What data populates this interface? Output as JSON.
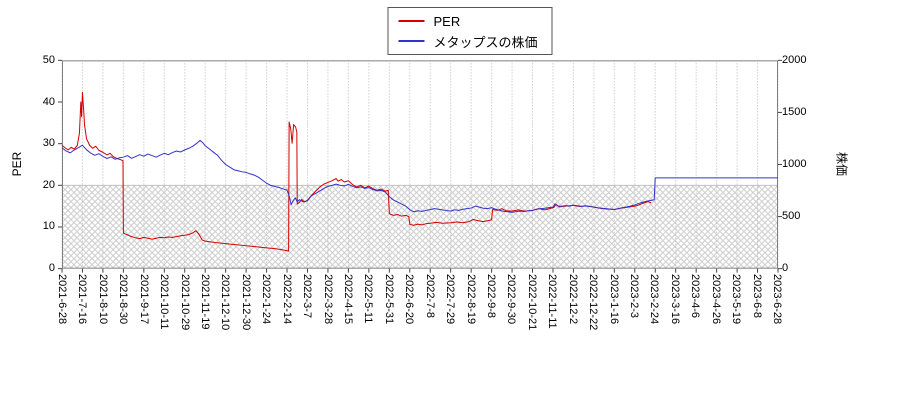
{
  "colors": {
    "per_line": "#d40000",
    "price_line": "#3333cc",
    "grid": "#b8b8b8",
    "hatch": "#cccccc",
    "hatch_edge": "#c0c0c0",
    "plot_border": "#808080",
    "tick_mark": "#444444"
  },
  "chart_data": {
    "type": "line",
    "title": "",
    "x_unit_note": "x values are x-axis tick-index units: 0 = 2021-6-28 tick, 35 = 2023-6-28 tick (ticks evenly spaced, ~15 trading days apart)",
    "x_domain": [
      0,
      35
    ],
    "x_axis": {
      "tick_labels": [
        "2021-6-28",
        "2021-7-16",
        "2021-8-10",
        "2021-8-30",
        "2021-9-17",
        "2021-10-11",
        "2021-10-29",
        "2021-11-19",
        "2021-12-10",
        "2021-12-30",
        "2022-1-24",
        "2022-2-14",
        "2022-3-7",
        "2022-3-28",
        "2022-4-15",
        "2022-5-11",
        "2022-5-31",
        "2022-6-20",
        "2022-7-8",
        "2022-7-29",
        "2022-8-19",
        "2022-9-8",
        "2022-9-30",
        "2022-10-21",
        "2022-11-11",
        "2022-12-2",
        "2022-12-22",
        "2023-1-16",
        "2023-2-3",
        "2023-2-24",
        "2023-3-16",
        "2023-4-6",
        "2023-4-26",
        "2023-5-19",
        "2023-6-8",
        "2023-6-28"
      ]
    },
    "y_left": {
      "label": "PER",
      "min": 0,
      "max": 50,
      "ticks": [
        0,
        10,
        20,
        30,
        40,
        50
      ]
    },
    "y_right": {
      "label": "株価",
      "min": 0,
      "max": 2000,
      "ticks": [
        0,
        500,
        1000,
        1500,
        2000
      ]
    },
    "shaded_band": {
      "axis": "left",
      "from": 0,
      "to": 20,
      "style": "crosshatch"
    },
    "legend_position": "top-center",
    "grid": "vertical-dotted",
    "series": [
      {
        "name": "PER",
        "color": "#d40000",
        "axis": "left",
        "points": [
          [
            0,
            29.6
          ],
          [
            0.15,
            29.0
          ],
          [
            0.3,
            28.5
          ],
          [
            0.45,
            29.1
          ],
          [
            0.6,
            28.7
          ],
          [
            0.75,
            29.6
          ],
          [
            0.85,
            32.5
          ],
          [
            0.92,
            40.0
          ],
          [
            0.96,
            36.5
          ],
          [
            1.0,
            42.3
          ],
          [
            1.05,
            38.5
          ],
          [
            1.1,
            34.5
          ],
          [
            1.2,
            31.2
          ],
          [
            1.35,
            29.6
          ],
          [
            1.5,
            28.9
          ],
          [
            1.65,
            29.4
          ],
          [
            1.8,
            28.4
          ],
          [
            2.0,
            27.9
          ],
          [
            2.2,
            27.3
          ],
          [
            2.35,
            27.7
          ],
          [
            2.5,
            26.9
          ],
          [
            2.7,
            26.4
          ],
          [
            2.9,
            26.1
          ],
          [
            2.98,
            25.9
          ],
          [
            3.0,
            8.5
          ],
          [
            3.2,
            8.1
          ],
          [
            3.4,
            7.7
          ],
          [
            3.6,
            7.4
          ],
          [
            3.8,
            7.2
          ],
          [
            4.0,
            7.5
          ],
          [
            4.2,
            7.3
          ],
          [
            4.4,
            7.1
          ],
          [
            4.6,
            7.3
          ],
          [
            4.8,
            7.5
          ],
          [
            5.0,
            7.4
          ],
          [
            5.2,
            7.6
          ],
          [
            5.4,
            7.5
          ],
          [
            5.6,
            7.7
          ],
          [
            5.8,
            7.9
          ],
          [
            6.0,
            8.0
          ],
          [
            6.2,
            8.2
          ],
          [
            6.4,
            8.6
          ],
          [
            6.55,
            9.1
          ],
          [
            6.7,
            8.2
          ],
          [
            6.85,
            6.9
          ],
          [
            7.0,
            6.6
          ],
          [
            7.3,
            6.4
          ],
          [
            7.6,
            6.2
          ],
          [
            8.0,
            6.0
          ],
          [
            8.4,
            5.8
          ],
          [
            8.8,
            5.6
          ],
          [
            9.2,
            5.4
          ],
          [
            9.6,
            5.2
          ],
          [
            10.0,
            5.0
          ],
          [
            10.4,
            4.8
          ],
          [
            10.8,
            4.5
          ],
          [
            11.0,
            4.3
          ],
          [
            11.08,
            4.2
          ],
          [
            11.1,
            35.2
          ],
          [
            11.18,
            33.6
          ],
          [
            11.25,
            30.1
          ],
          [
            11.32,
            34.6
          ],
          [
            11.42,
            34.0
          ],
          [
            11.48,
            32.8
          ],
          [
            11.5,
            15.5
          ],
          [
            11.6,
            15.9
          ],
          [
            11.72,
            16.6
          ],
          [
            11.85,
            16.0
          ],
          [
            12.0,
            16.4
          ],
          [
            12.2,
            17.6
          ],
          [
            12.4,
            18.6
          ],
          [
            12.6,
            19.6
          ],
          [
            12.8,
            20.3
          ],
          [
            13.0,
            20.7
          ],
          [
            13.2,
            21.1
          ],
          [
            13.4,
            21.6
          ],
          [
            13.5,
            21.0
          ],
          [
            13.65,
            21.4
          ],
          [
            13.8,
            20.8
          ],
          [
            14.0,
            21.1
          ],
          [
            14.2,
            20.2
          ],
          [
            14.4,
            19.6
          ],
          [
            14.6,
            20.0
          ],
          [
            14.8,
            19.4
          ],
          [
            15.0,
            19.8
          ],
          [
            15.2,
            19.2
          ],
          [
            15.4,
            18.8
          ],
          [
            15.6,
            19.1
          ],
          [
            15.8,
            18.6
          ],
          [
            15.95,
            18.8
          ],
          [
            16.0,
            13.2
          ],
          [
            16.2,
            12.8
          ],
          [
            16.4,
            13.0
          ],
          [
            16.6,
            12.6
          ],
          [
            16.8,
            12.8
          ],
          [
            16.95,
            12.5
          ],
          [
            17.0,
            10.6
          ],
          [
            17.2,
            10.4
          ],
          [
            17.4,
            10.7
          ],
          [
            17.6,
            10.5
          ],
          [
            17.8,
            10.8
          ],
          [
            18.0,
            10.9
          ],
          [
            18.3,
            11.1
          ],
          [
            18.6,
            10.9
          ],
          [
            19.0,
            11.0
          ],
          [
            19.3,
            11.2
          ],
          [
            19.6,
            11.0
          ],
          [
            19.9,
            11.3
          ],
          [
            20.1,
            11.8
          ],
          [
            20.35,
            11.5
          ],
          [
            20.6,
            11.3
          ],
          [
            20.8,
            11.5
          ],
          [
            21.0,
            11.7
          ],
          [
            21.05,
            14.2
          ],
          [
            21.3,
            14.0
          ],
          [
            21.5,
            14.4
          ],
          [
            21.7,
            13.9
          ],
          [
            22.0,
            13.8
          ],
          [
            22.3,
            14.1
          ],
          [
            22.6,
            13.8
          ],
          [
            23.0,
            14.0
          ],
          [
            23.3,
            14.4
          ],
          [
            23.6,
            14.1
          ],
          [
            23.9,
            14.5
          ],
          [
            24.05,
            14.7
          ],
          [
            24.15,
            15.5
          ],
          [
            24.3,
            14.8
          ],
          [
            24.6,
            15.0
          ],
          [
            25.0,
            15.2
          ],
          [
            25.3,
            14.9
          ],
          [
            25.6,
            15.1
          ],
          [
            26.0,
            14.8
          ],
          [
            26.3,
            14.5
          ],
          [
            26.6,
            14.3
          ],
          [
            27.0,
            14.2
          ],
          [
            27.3,
            14.5
          ],
          [
            27.6,
            14.7
          ],
          [
            28.0,
            15.0
          ],
          [
            28.2,
            15.3
          ],
          [
            28.45,
            15.8
          ],
          [
            28.65,
            16.1
          ],
          [
            28.8,
            15.8
          ]
        ]
      },
      {
        "name": "メタップスの株価",
        "color": "#3333cc",
        "axis": "right",
        "points": [
          [
            0,
            1160
          ],
          [
            0.2,
            1130
          ],
          [
            0.4,
            1112
          ],
          [
            0.6,
            1140
          ],
          [
            0.8,
            1162
          ],
          [
            1.0,
            1186
          ],
          [
            1.2,
            1142
          ],
          [
            1.4,
            1110
          ],
          [
            1.6,
            1088
          ],
          [
            1.8,
            1104
          ],
          [
            2.0,
            1078
          ],
          [
            2.2,
            1058
          ],
          [
            2.4,
            1074
          ],
          [
            2.6,
            1050
          ],
          [
            2.8,
            1064
          ],
          [
            3.0,
            1070
          ],
          [
            3.2,
            1086
          ],
          [
            3.4,
            1060
          ],
          [
            3.6,
            1076
          ],
          [
            3.8,
            1094
          ],
          [
            4.0,
            1080
          ],
          [
            4.2,
            1100
          ],
          [
            4.4,
            1086
          ],
          [
            4.6,
            1070
          ],
          [
            4.8,
            1090
          ],
          [
            5.0,
            1108
          ],
          [
            5.2,
            1094
          ],
          [
            5.4,
            1114
          ],
          [
            5.6,
            1130
          ],
          [
            5.8,
            1120
          ],
          [
            6.0,
            1140
          ],
          [
            6.2,
            1156
          ],
          [
            6.4,
            1176
          ],
          [
            6.6,
            1206
          ],
          [
            6.75,
            1232
          ],
          [
            6.9,
            1205
          ],
          [
            7.0,
            1180
          ],
          [
            7.2,
            1150
          ],
          [
            7.4,
            1118
          ],
          [
            7.6,
            1088
          ],
          [
            7.8,
            1040
          ],
          [
            8.0,
            1000
          ],
          [
            8.2,
            975
          ],
          [
            8.4,
            950
          ],
          [
            8.6,
            940
          ],
          [
            8.8,
            930
          ],
          [
            9.0,
            924
          ],
          [
            9.2,
            910
          ],
          [
            9.4,
            898
          ],
          [
            9.6,
            878
          ],
          [
            9.8,
            850
          ],
          [
            10.0,
            820
          ],
          [
            10.2,
            800
          ],
          [
            10.4,
            790
          ],
          [
            10.6,
            780
          ],
          [
            10.8,
            766
          ],
          [
            11.0,
            754
          ],
          [
            11.1,
            700
          ],
          [
            11.2,
            614
          ],
          [
            11.3,
            652
          ],
          [
            11.4,
            680
          ],
          [
            11.5,
            642
          ],
          [
            11.6,
            662
          ],
          [
            11.8,
            640
          ],
          [
            12.0,
            652
          ],
          [
            12.2,
            700
          ],
          [
            12.4,
            722
          ],
          [
            12.6,
            746
          ],
          [
            12.8,
            770
          ],
          [
            13.0,
            790
          ],
          [
            13.2,
            800
          ],
          [
            13.4,
            812
          ],
          [
            13.6,
            800
          ],
          [
            13.8,
            794
          ],
          [
            14.0,
            810
          ],
          [
            14.2,
            790
          ],
          [
            14.4,
            776
          ],
          [
            14.6,
            786
          ],
          [
            14.8,
            770
          ],
          [
            15.0,
            778
          ],
          [
            15.2,
            760
          ],
          [
            15.4,
            746
          ],
          [
            15.6,
            752
          ],
          [
            15.8,
            736
          ],
          [
            16.0,
            690
          ],
          [
            16.2,
            660
          ],
          [
            16.4,
            640
          ],
          [
            16.6,
            620
          ],
          [
            16.8,
            600
          ],
          [
            17.0,
            566
          ],
          [
            17.2,
            546
          ],
          [
            17.4,
            556
          ],
          [
            17.6,
            550
          ],
          [
            17.8,
            560
          ],
          [
            18.0,
            566
          ],
          [
            18.2,
            576
          ],
          [
            18.4,
            570
          ],
          [
            18.6,
            564
          ],
          [
            18.8,
            558
          ],
          [
            19.0,
            554
          ],
          [
            19.2,
            564
          ],
          [
            19.4,
            560
          ],
          [
            19.6,
            570
          ],
          [
            19.8,
            576
          ],
          [
            20.0,
            582
          ],
          [
            20.2,
            600
          ],
          [
            20.4,
            590
          ],
          [
            20.6,
            580
          ],
          [
            20.8,
            576
          ],
          [
            21.0,
            586
          ],
          [
            21.2,
            570
          ],
          [
            21.4,
            560
          ],
          [
            21.6,
            550
          ],
          [
            21.8,
            546
          ],
          [
            22.0,
            540
          ],
          [
            22.2,
            548
          ],
          [
            22.4,
            552
          ],
          [
            22.6,
            548
          ],
          [
            22.8,
            556
          ],
          [
            23.0,
            560
          ],
          [
            23.2,
            570
          ],
          [
            23.4,
            576
          ],
          [
            23.6,
            580
          ],
          [
            23.8,
            586
          ],
          [
            24.0,
            590
          ],
          [
            24.1,
            620
          ],
          [
            24.25,
            602
          ],
          [
            24.4,
            598
          ],
          [
            24.6,
            606
          ],
          [
            24.8,
            600
          ],
          [
            25.0,
            610
          ],
          [
            25.2,
            604
          ],
          [
            25.4,
            598
          ],
          [
            25.6,
            602
          ],
          [
            25.8,
            596
          ],
          [
            26.0,
            590
          ],
          [
            26.2,
            584
          ],
          [
            26.4,
            580
          ],
          [
            26.6,
            576
          ],
          [
            26.8,
            572
          ],
          [
            27.0,
            568
          ],
          [
            27.2,
            576
          ],
          [
            27.4,
            586
          ],
          [
            27.6,
            592
          ],
          [
            27.8,
            602
          ],
          [
            28.0,
            612
          ],
          [
            28.2,
            626
          ],
          [
            28.4,
            638
          ],
          [
            28.6,
            648
          ],
          [
            28.8,
            656
          ],
          [
            28.95,
            662
          ],
          [
            29.0,
            872
          ],
          [
            29.5,
            872
          ],
          [
            30.0,
            872
          ],
          [
            31.0,
            872
          ],
          [
            32.0,
            872
          ],
          [
            33.0,
            872
          ],
          [
            34.0,
            872
          ],
          [
            35.0,
            872
          ]
        ]
      }
    ]
  }
}
